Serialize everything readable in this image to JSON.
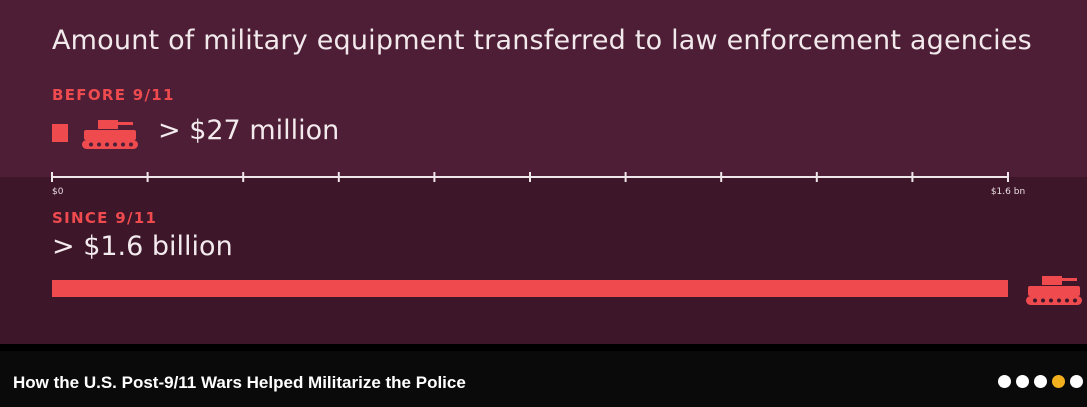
{
  "chart_data": {
    "type": "bar",
    "title": "Amount of military equipment transferred to law enforcement agencies",
    "categories": [
      "BEFORE 9/11",
      "SINCE 9/11"
    ],
    "values": [
      0.027,
      1.6
    ],
    "value_labels": [
      "> $27 million",
      "> $1.6 billion"
    ],
    "unit": "billion USD",
    "xlim": [
      0,
      1.6
    ],
    "axis_tick_labels": {
      "start": "$0",
      "end": "$1.6 bn"
    },
    "tick_count": 10,
    "grid": false
  },
  "colors": {
    "accent": "#ef4b4f",
    "text": "#f3eaed",
    "background_top": "#4d1e35",
    "background_bottom": "#3e1629",
    "active_dot": "#f2b01e"
  },
  "icons": {
    "before": "tank-icon",
    "since": "tank-icon"
  },
  "footer": {
    "title": "How the U.S. Post-9/11 Wars Helped Militarize the Police",
    "pagination": {
      "total": 5,
      "active": 4
    }
  }
}
